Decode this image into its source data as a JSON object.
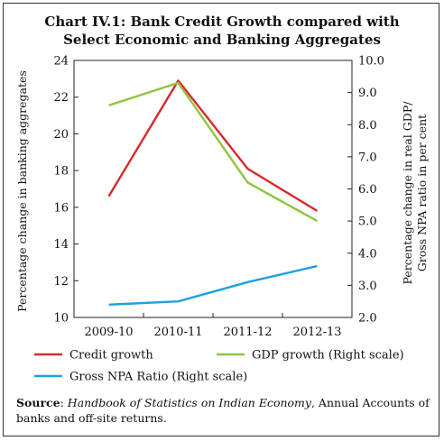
{
  "chart_data": {
    "type": "line",
    "title_line1": "Chart IV.1: Bank Credit Growth compared with",
    "title_line2": "Select Economic and Banking Aggregates",
    "categories": [
      "2009-10",
      "2010-11",
      "2011-12",
      "2012-13"
    ],
    "ylabel_left": "Percentage change in banking aggregates",
    "ylabel_right_line1": "Percentage change in real GDP/",
    "ylabel_right_line2": "Gross NPA ratio in per cent",
    "ylim_left": [
      10,
      24
    ],
    "ylim_right": [
      2.0,
      10.0
    ],
    "yticks_left": [
      "10",
      "12",
      "14",
      "16",
      "18",
      "20",
      "22",
      "24"
    ],
    "yticks_right": [
      "2.0",
      "3.0",
      "4.0",
      "5.0",
      "6.0",
      "7.0",
      "8.0",
      "9.0",
      "10.0"
    ],
    "grid": false,
    "legend_position": "bottom",
    "series": [
      {
        "name": "Credit growth",
        "axis": "left",
        "color": "#d62a2a",
        "values": [
          16.6,
          22.9,
          18.1,
          15.8
        ]
      },
      {
        "name": "GDP growth (Right scale)",
        "axis": "right",
        "color": "#8dc63f",
        "values": [
          8.6,
          9.3,
          6.2,
          5.0
        ]
      },
      {
        "name": "Gross NPA Ratio (Right scale)",
        "axis": "right",
        "color": "#1ea0e0",
        "values": [
          2.4,
          2.5,
          3.1,
          3.6
        ]
      }
    ]
  },
  "source": {
    "label": "Source",
    "italic_text": "Handbook of Statistics on Indian Economy",
    "rest_text": ", Annual Accounts of banks and off-site returns."
  }
}
